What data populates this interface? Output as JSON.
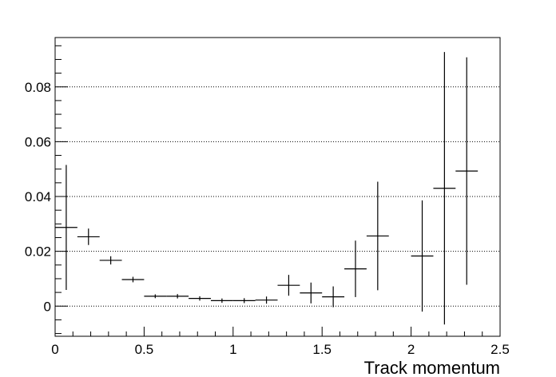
{
  "chart_data": {
    "type": "scatter",
    "title": "",
    "xlabel": "Track momentum",
    "ylabel": "",
    "xlim": [
      0,
      2.5
    ],
    "ylim": [
      -0.011,
      0.098
    ],
    "grid": {
      "x": false,
      "y": true
    },
    "x_ticks": [
      {
        "value": 0,
        "label": "0"
      },
      {
        "value": 0.5,
        "label": "0.5"
      },
      {
        "value": 1,
        "label": "1"
      },
      {
        "value": 1.5,
        "label": "1.5"
      },
      {
        "value": 2,
        "label": "2"
      },
      {
        "value": 2.5,
        "label": "2.5"
      }
    ],
    "y_ticks": [
      {
        "value": 0,
        "label": "0"
      },
      {
        "value": 0.02,
        "label": "0.02"
      },
      {
        "value": 0.04,
        "label": "0.04"
      },
      {
        "value": 0.06,
        "label": "0.06"
      },
      {
        "value": 0.08,
        "label": "0.08"
      }
    ],
    "bin_width": 0.125,
    "points": [
      {
        "x": 0.0625,
        "y": 0.0287,
        "err": 0.0228
      },
      {
        "x": 0.1875,
        "y": 0.0253,
        "err": 0.003
      },
      {
        "x": 0.3125,
        "y": 0.0167,
        "err": 0.0015
      },
      {
        "x": 0.4375,
        "y": 0.0097,
        "err": 0.001
      },
      {
        "x": 0.5625,
        "y": 0.0036,
        "err": 0.0007
      },
      {
        "x": 0.6875,
        "y": 0.0036,
        "err": 0.0008
      },
      {
        "x": 0.8125,
        "y": 0.0028,
        "err": 0.0008
      },
      {
        "x": 0.9375,
        "y": 0.002,
        "err": 0.0008
      },
      {
        "x": 1.0625,
        "y": 0.002,
        "err": 0.0009
      },
      {
        "x": 1.1875,
        "y": 0.0022,
        "err": 0.0013
      },
      {
        "x": 1.3125,
        "y": 0.0076,
        "err": 0.0038
      },
      {
        "x": 1.4375,
        "y": 0.0048,
        "err": 0.0038
      },
      {
        "x": 1.5625,
        "y": 0.0034,
        "err": 0.0038
      },
      {
        "x": 1.6875,
        "y": 0.0136,
        "err": 0.0103
      },
      {
        "x": 1.8125,
        "y": 0.0256,
        "err": 0.0198
      },
      {
        "x": 2.0625,
        "y": 0.0183,
        "err": 0.0203
      },
      {
        "x": 2.1875,
        "y": 0.043,
        "err": 0.0497
      },
      {
        "x": 2.3125,
        "y": 0.0493,
        "err": 0.0415
      }
    ]
  }
}
